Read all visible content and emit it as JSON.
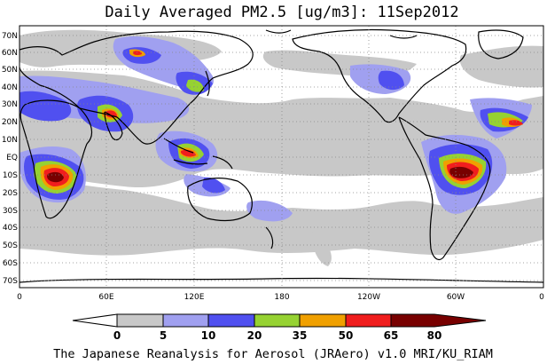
{
  "title": "Daily Averaged PM2.5 [ug/m3]: 11Sep2012",
  "credit": "The Japanese Reanalysis for Aerosol (JRAero) v1.0 MRI/KU_RIAM",
  "lat_labels": [
    "70N",
    "60N",
    "50N",
    "40N",
    "30N",
    "20N",
    "10N",
    "EQ",
    "10S",
    "20S",
    "30S",
    "40S",
    "50S",
    "60S",
    "70S"
  ],
  "lon_labels": [
    "0",
    "60E",
    "120E",
    "180",
    "120W",
    "60W",
    "0"
  ],
  "colorbar": {
    "ticks": [
      "0",
      "5",
      "10",
      "20",
      "35",
      "50",
      "65",
      "80"
    ],
    "colors": [
      "#ffffff",
      "#c8c8c8",
      "#a0a0f0",
      "#5050f0",
      "#96d232",
      "#f0a000",
      "#f01e1e",
      "#780000"
    ]
  },
  "legend_colors": {
    "white": "#ffffff",
    "gray": "#c8c8c8",
    "light_blue": "#a0a0f0",
    "blue": "#5050f0",
    "green": "#96d232",
    "orange": "#f0a000",
    "red": "#f01e1e",
    "dark_red": "#780000"
  }
}
